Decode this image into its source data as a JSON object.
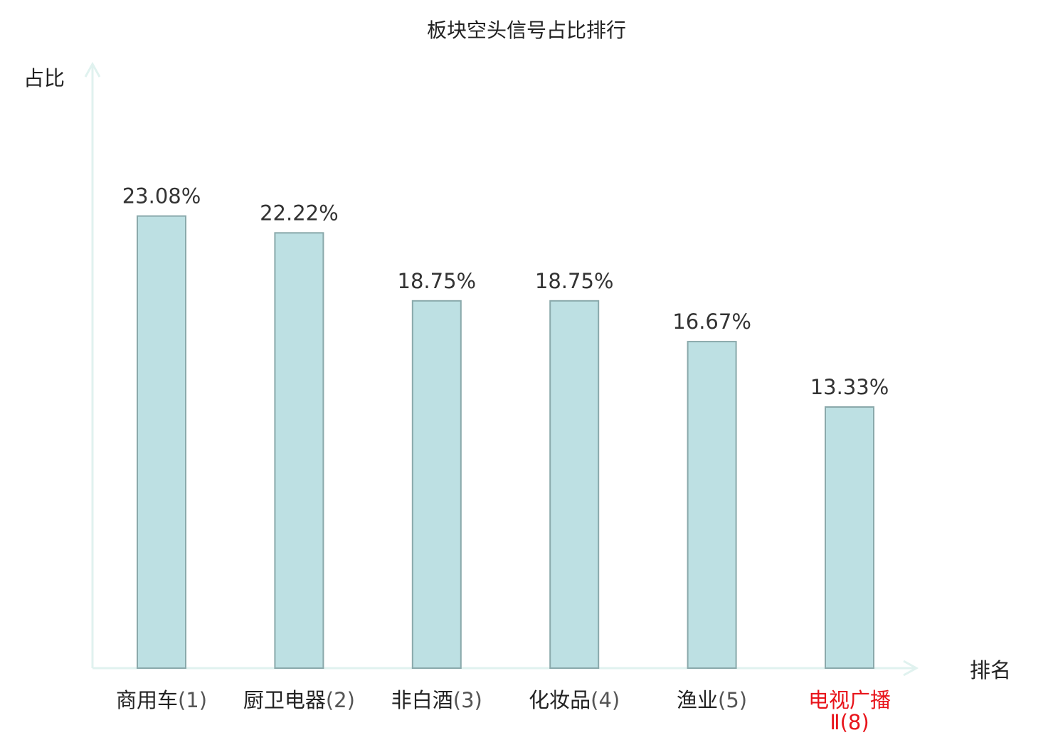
{
  "chart_data": {
    "type": "bar",
    "title": "板块空头信号占比排行",
    "xlabel": "排名",
    "ylabel": "占比",
    "ylim": [
      0,
      25
    ],
    "grid": false,
    "legend": "none",
    "categories": [
      {
        "name": "商用车",
        "rank": "(1)",
        "highlight": false
      },
      {
        "name": "厨卫电器",
        "rank": "(2)",
        "highlight": false
      },
      {
        "name": "非白酒",
        "rank": "(3)",
        "highlight": false
      },
      {
        "name": "化妆品",
        "rank": "(4)",
        "highlight": false
      },
      {
        "name": "渔业",
        "rank": "(5)",
        "highlight": false
      },
      {
        "name": "电视广播",
        "rank": "Ⅱ(8)",
        "highlight": true
      }
    ],
    "values": [
      23.08,
      22.22,
      18.75,
      18.75,
      16.67,
      13.33
    ],
    "value_labels": [
      "23.08%",
      "22.22%",
      "18.75%",
      "18.75%",
      "16.67%",
      "13.33%"
    ],
    "colors": {
      "bar_fill": "#bde0e3",
      "bar_stroke": "#8aa9ab",
      "axis": "#e0f2ef",
      "highlight_text": "#e8141b",
      "text": "#222222"
    }
  }
}
